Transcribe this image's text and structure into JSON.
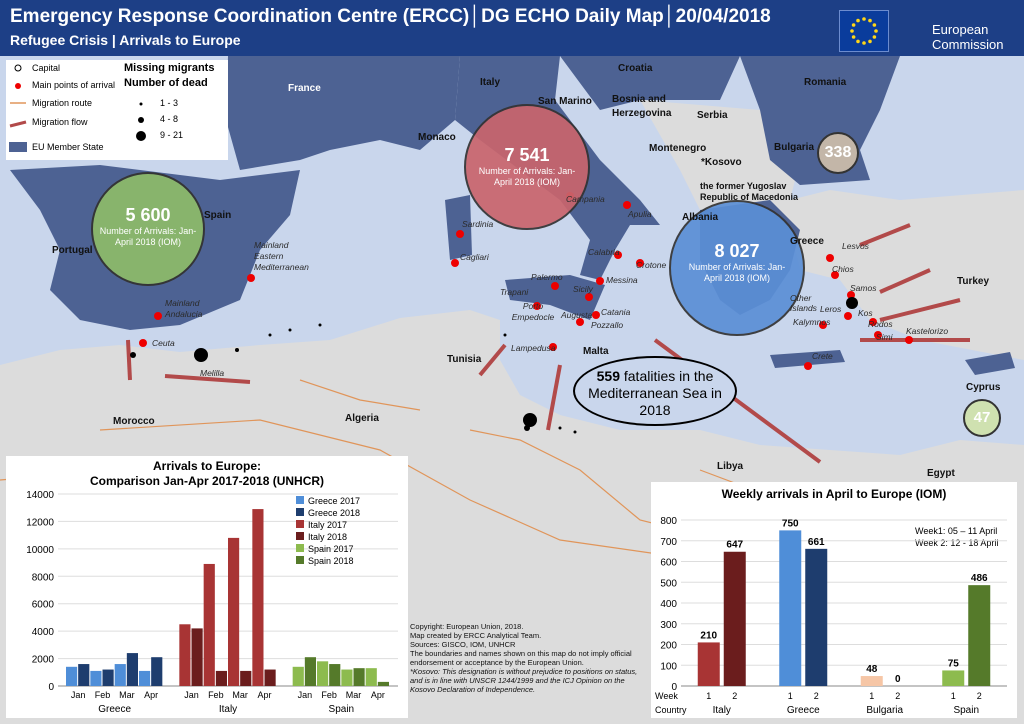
{
  "header": {
    "title": "Emergency Response Coordination Centre (ERCC)│DG ECHO Daily Map│20/04/2018",
    "subtitle": "Refugee Crisis | Arrivals to Europe",
    "org_name": "European\nCommission"
  },
  "colors": {
    "header": "#1d3f86",
    "sea": "#c9d6ec",
    "eu_member": "#4d6293",
    "non_eu": "#dcdcdc",
    "route": "#e0955a",
    "flow": "#b24a4a"
  },
  "legend": {
    "capital": "Capital",
    "arrival_points": "Main points of arrival",
    "route": "Migration route",
    "flow": "Migration flow",
    "eu": "EU Member State",
    "missing_title": "Missing migrants",
    "dead_title": "Number of dead",
    "ranges": [
      "1 - 3",
      "4 - 8",
      "9 - 21"
    ]
  },
  "countries": {
    "croatia": "Croatia",
    "france": "France",
    "italy": "Italy",
    "romania": "Romania",
    "san_marino": "San Marino",
    "bosnia": "Bosnia and Herzegovina",
    "serbia": "Serbia",
    "monaco": "Monaco",
    "montenegro": "Montenegro",
    "kosovo": "*Kosovo",
    "bulgaria": "Bulgaria",
    "fyrom": "the former Yugoslav Republic of Macedonia",
    "albania": "Albania",
    "spain": "Spain",
    "portugal": "Portugal",
    "greece": "Greece",
    "turkey": "Turkey",
    "tunisia": "Tunisia",
    "malta": "Malta",
    "morocco": "Morocco",
    "algeria": "Algeria",
    "libya": "Libya",
    "cyprus": "Cyprus",
    "egypt": "Egypt"
  },
  "places": {
    "mainland_eastern": "Mainland Eastern Mediterranean",
    "mainland_andalucia": "Mainland Andalucia",
    "ceuta": "Ceuta",
    "melilla": "Melilla",
    "sardinia": "Sardinia",
    "cagliari": "Cagliari",
    "campania": "Campania",
    "apulia": "Apulia",
    "calabria": "Calabria",
    "crotone": "Crotone",
    "messina": "Messina",
    "palermo": "Palermo",
    "trapani": "Trapani",
    "sicily": "Sicily",
    "porto_empedocle": "Porto Empedocle",
    "augusta": "Augusta",
    "catania": "Catania",
    "pozzallo": "Pozzallo",
    "lampedusa": "Lampedusa",
    "lesvos": "Lesvos",
    "chios": "Chios",
    "samos": "Samos",
    "leros": "Leros",
    "kalymnos": "Kalymnos",
    "kos": "Kos",
    "other_islands": "Other Islands",
    "rodos": "Rodos",
    "simi": "Simi",
    "kastelorizo": "Kastelorizo",
    "crete": "Crete"
  },
  "bubbles": {
    "spain": {
      "value": "5 600",
      "label": "Number of Arrivals: Jan-April 2018 (IOM)"
    },
    "italy": {
      "value": "7 541",
      "label": "Number of Arrivals: Jan-April 2018 (IOM)"
    },
    "greece": {
      "value": "8 027",
      "label": "Number of Arrivals: Jan-April 2018 (IOM)"
    },
    "bulgaria": {
      "value": "338"
    },
    "cyprus": {
      "value": "47"
    }
  },
  "fatalities": {
    "number": "559",
    "text": "fatalities in the Mediterranean Sea in 2018"
  },
  "copyright": [
    "Copyright: European Union, 2018.",
    "Map created by ERCC Analytical Team.",
    "Sources: GISCO, IOM, UNHCR",
    "The boundaries and names shown on this map do not imply official endorsement or acceptance by the European Union.",
    "*Kosovo: This designation is without prejudice to positions on status, and is in line with UNSCR 1244/1999 and the ICJ Opinion on the Kosovo Declaration of Independence."
  ],
  "chart_data": [
    {
      "type": "bar",
      "title": "Arrivals to Europe:",
      "subtitle": "Comparison Jan-Apr 2017-2018 (UNHCR)",
      "groups": [
        "Greece",
        "Italy",
        "Spain"
      ],
      "categories": [
        "Jan",
        "Feb",
        "Mar",
        "Apr"
      ],
      "ylim": [
        0,
        14000
      ],
      "yticks": [
        0,
        2000,
        4000,
        6000,
        8000,
        10000,
        12000,
        14000
      ],
      "series": [
        {
          "name": "Greece 2017",
          "group": "Greece",
          "color": "#4f8ed8",
          "values": [
            1400,
            1100,
            1600,
            1100
          ]
        },
        {
          "name": "Greece 2018",
          "group": "Greece",
          "color": "#1e3d6e",
          "values": [
            1600,
            1200,
            2400,
            2100
          ]
        },
        {
          "name": "Italy 2017",
          "group": "Italy",
          "color": "#a83434",
          "values": [
            4500,
            8900,
            10800,
            12900
          ]
        },
        {
          "name": "Italy 2018",
          "group": "Italy",
          "color": "#6b1d1d",
          "values": [
            4200,
            1100,
            1100,
            1200
          ]
        },
        {
          "name": "Spain 2017",
          "group": "Spain",
          "color": "#8dbb4e",
          "values": [
            1400,
            1800,
            1200,
            1300
          ]
        },
        {
          "name": "Spain 2018",
          "group": "Spain",
          "color": "#557a2a",
          "values": [
            2100,
            1600,
            1300,
            300
          ]
        }
      ]
    },
    {
      "type": "bar",
      "title": "Weekly arrivals in April to Europe (IOM)",
      "note1": "Week1: 05 – 11 April",
      "note2": "Week 2: 12 - 18 April",
      "categories": [
        "Italy",
        "Greece",
        "Bulgaria",
        "Spain"
      ],
      "weeks": [
        "1",
        "2"
      ],
      "xlabel_week": "Week",
      "xlabel_country": "Country",
      "ylim": [
        0,
        800
      ],
      "yticks": [
        0,
        100,
        200,
        300,
        400,
        500,
        600,
        700,
        800
      ],
      "series": [
        {
          "name": "Week 1",
          "values": [
            210,
            750,
            48,
            75
          ],
          "colors": [
            "#a83434",
            "#4f8ed8",
            "#f6c6a6",
            "#8dbb4e"
          ]
        },
        {
          "name": "Week 2",
          "values": [
            647,
            661,
            0,
            486
          ],
          "colors": [
            "#6b1d1d",
            "#1e3d6e",
            "#f6c6a6",
            "#557a2a"
          ]
        }
      ]
    }
  ]
}
